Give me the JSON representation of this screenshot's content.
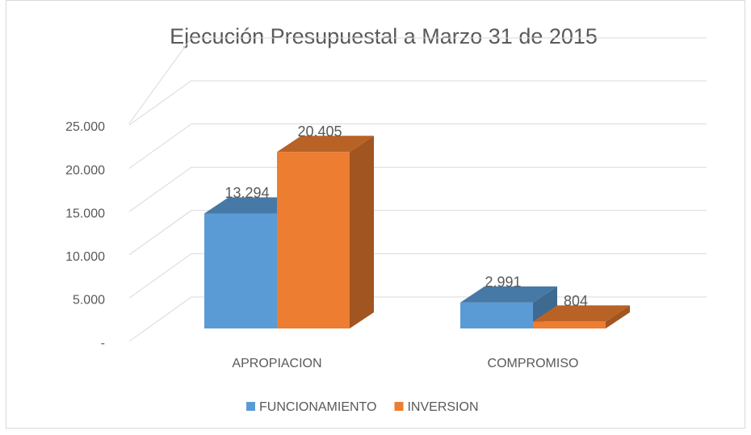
{
  "chart_data": {
    "type": "bar3d",
    "title": "Ejecución Presupuestal a Marzo 31 de 2015",
    "categories": [
      "APROPIACION",
      "COMPROMISO"
    ],
    "series": [
      {
        "name": "FUNCIONAMIENTO",
        "color": "#5b9bd5",
        "values": [
          13294,
          2991
        ],
        "value_labels": [
          "13.294",
          "2.991"
        ]
      },
      {
        "name": "INVERSION",
        "color": "#ed7d31",
        "values": [
          20405,
          804
        ],
        "value_labels": [
          "20.405",
          "804"
        ]
      }
    ],
    "ylim": [
      0,
      25000
    ],
    "yticks": [
      {
        "value": 0,
        "label": "-"
      },
      {
        "value": 5000,
        "label": "5.000"
      },
      {
        "value": 10000,
        "label": "10.000"
      },
      {
        "value": 15000,
        "label": "15.000"
      },
      {
        "value": 20000,
        "label": "20.000"
      },
      {
        "value": 25000,
        "label": "25.000"
      }
    ],
    "grid": true,
    "legend": "bottom"
  }
}
